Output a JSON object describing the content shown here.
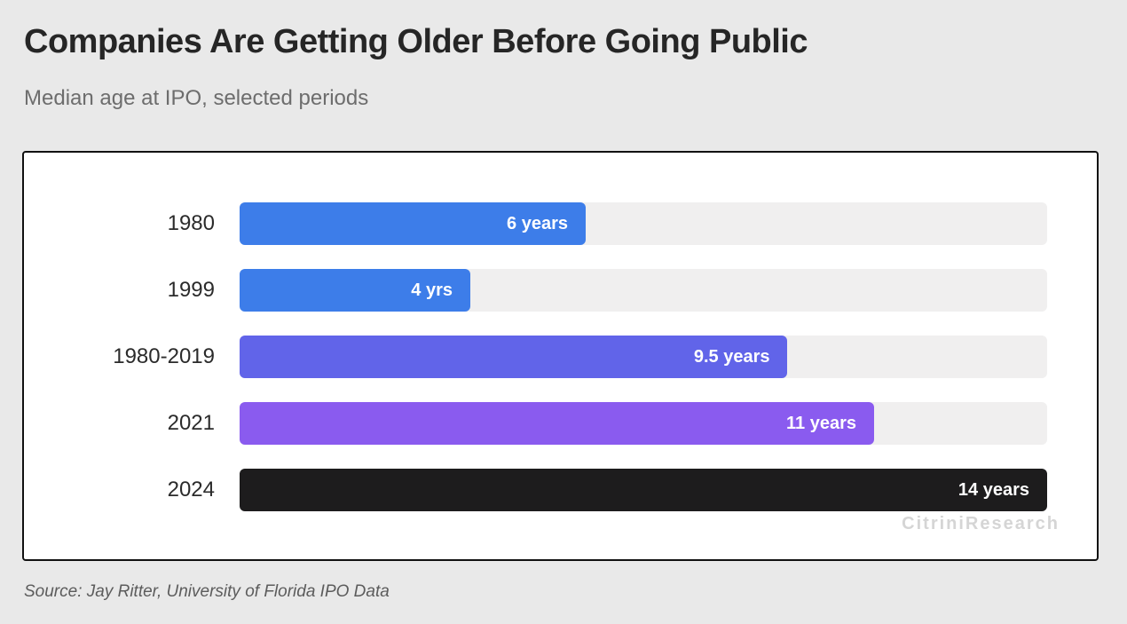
{
  "header": {
    "title": "Companies Are Getting Older Before Going Public",
    "subtitle": "Median age at IPO, selected periods"
  },
  "watermark": "CitriniResearch",
  "footer": {
    "source": "Source: Jay Ritter, University of Florida IPO Data"
  },
  "colors": {
    "page_background": "#e9e9e9",
    "panel_background": "#ffffff",
    "panel_border": "#111111",
    "track": "#f0efef",
    "value_text": "#ffffff",
    "watermark_text": "#d5d5d5"
  },
  "chart_data": {
    "type": "bar",
    "orientation": "horizontal",
    "title": "Companies Are Getting Older Before Going Public",
    "subtitle": "Median age at IPO, selected periods",
    "categories": [
      "1980",
      "1999",
      "1980-2019",
      "2021",
      "2024"
    ],
    "values": [
      6,
      4,
      9.5,
      11,
      14
    ],
    "value_labels": [
      "6 years",
      "4 yrs",
      "9.5 years",
      "11 years",
      "14 years"
    ],
    "bar_colors": [
      "#3d7de9",
      "#3d7de9",
      "#6164e9",
      "#8a5bef",
      "#1d1c1d"
    ],
    "xlim": [
      0,
      14
    ],
    "grid": false,
    "legend": false,
    "source": "Source: Jay Ritter, University of Florida IPO Data"
  }
}
